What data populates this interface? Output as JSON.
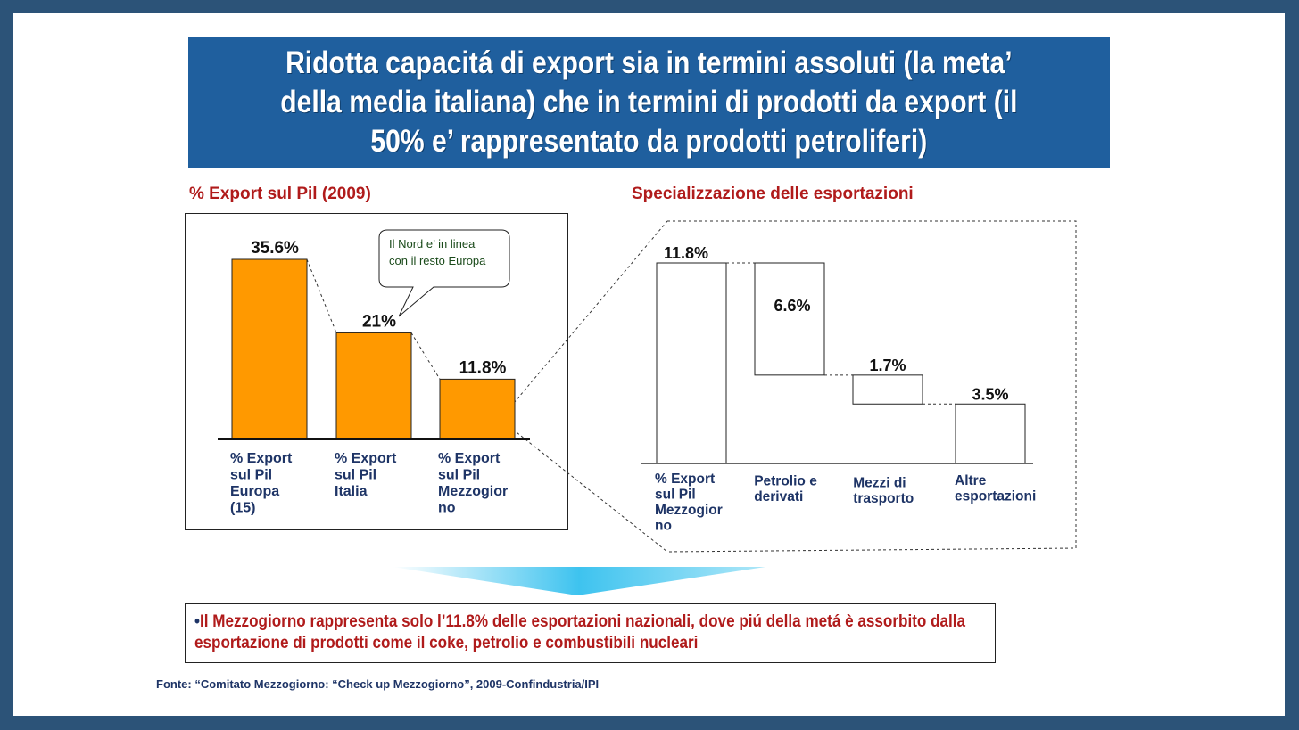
{
  "title": "Ridotta capacitá di export sia in termini assoluti (la meta’\ndella media italiana) che in termini di prodotti da export (il\n50% e’ rappresentato da prodotti petroliferi)",
  "left_chart_title": "% Export sul Pil (2009)",
  "right_chart_title": "Specializzazione delle esportazioni",
  "callout": [
    "Il Nord e’ in linea",
    "con il resto Europa"
  ],
  "conclusion": "Il Mezzogiorno rappresenta solo l’11.8% delle esportazioni nazionali, dove piú della metá è assorbito dalla esportazione di prodotti come il coke, petrolio e combustibili nucleari",
  "conclusion_bullet": "•",
  "source": "Fonte: “Comitato Mezzogiorno: “Check up Mezzogiorno”, 2009-Confindustria/IPI",
  "colors": {
    "bar_fill": "#ff9900",
    "accent_red": "#b01b1b",
    "banner": "#1f5f9e",
    "label_blue": "#1e3466"
  },
  "chart_data": [
    {
      "type": "bar",
      "title": "% Export sul Pil (2009)",
      "categories": [
        [
          "% Export",
          "sul Pil",
          "Europa",
          "(15)"
        ],
        [
          "% Export",
          "sul Pil",
          "Italia"
        ],
        [
          "% Export",
          "sul Pil",
          "Mezzogior",
          "no"
        ]
      ],
      "values": [
        35.6,
        21,
        11.8
      ],
      "data_labels": [
        "35.6%",
        "21%",
        "11.8%"
      ],
      "ylim": [
        0,
        40
      ],
      "grid": false
    },
    {
      "type": "bar",
      "subtype": "waterfall",
      "title": "Specializzazione delle esportazioni",
      "categories": [
        [
          "% Export",
          "sul Pil",
          "Mezzogior",
          "no"
        ],
        [
          "Petrolio e",
          "derivati"
        ],
        [
          "Mezzi di",
          "trasporto"
        ],
        [
          "Altre",
          "esportazioni"
        ]
      ],
      "values": [
        11.8,
        6.6,
        1.7,
        3.5
      ],
      "data_labels": [
        "11.8%",
        "6.6%",
        "1.7%",
        "3.5%"
      ],
      "ylim": [
        0,
        13
      ],
      "grid": false
    }
  ]
}
